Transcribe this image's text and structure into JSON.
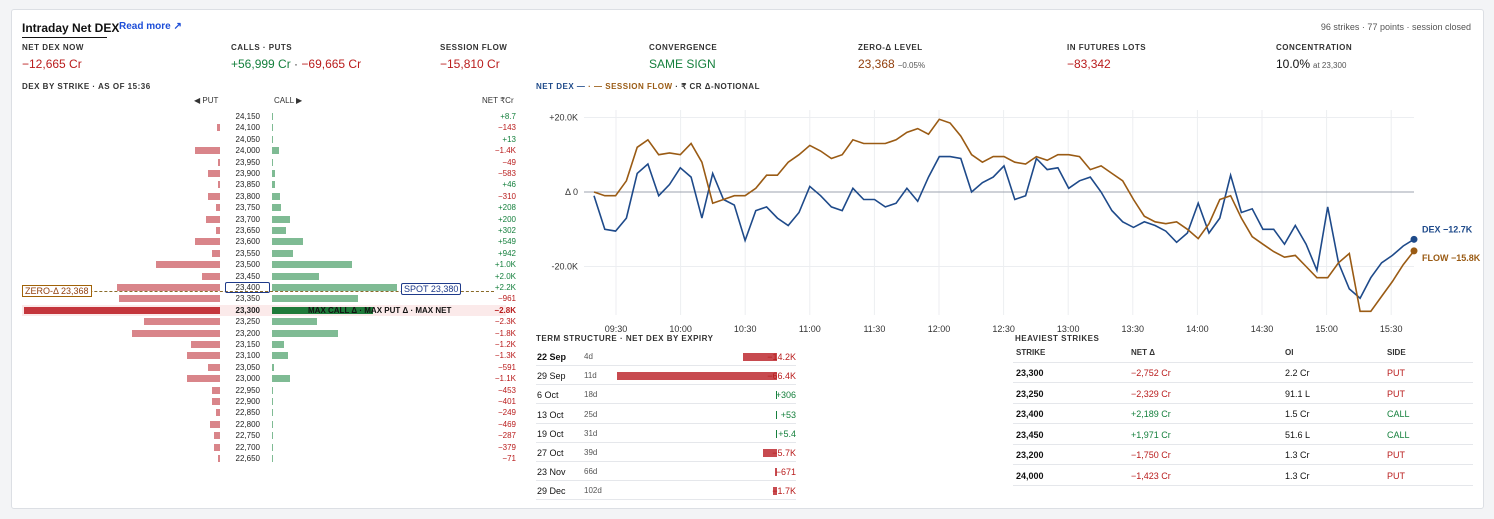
{
  "header": {
    "title": "Intraday Net DEX",
    "read_more": "Read more ↗",
    "meta": "96 strikes · 77 points · session closed"
  },
  "metrics": [
    {
      "label": "NET DEX NOW",
      "value": "−12,665 Cr",
      "color": "red",
      "sub": ""
    },
    {
      "label": "CALLS · PUTS",
      "value": "",
      "color": "",
      "sub": "",
      "calls": "+56,999 Cr",
      "sep": " · ",
      "puts": "−69,665 Cr"
    },
    {
      "label": "SESSION FLOW",
      "value": "−15,810 Cr",
      "color": "red",
      "sub": ""
    },
    {
      "label": "CONVERGENCE",
      "value": "SAME SIGN",
      "color": "green",
      "sub": ""
    },
    {
      "label": "ZERO-Δ LEVEL",
      "value": "23,368",
      "color": "olive",
      "sub": "−0.05%"
    },
    {
      "label": "IN FUTURES LOTS",
      "value": "−83,342",
      "color": "red",
      "sub": ""
    },
    {
      "label": "CONCENTRATION",
      "value": "10.0%",
      "color": "dark",
      "sub": "at 23,300"
    }
  ],
  "strike_section": {
    "title": "DEX BY STRIKE · AS OF 15:36",
    "put_label": "◀ PUT",
    "call_label": "CALL ▶",
    "net_label": "NET ₹Cr",
    "zero_label": "ZERO-Δ 23,368",
    "spot_label": "SPOT 23,380",
    "max_label": "MAX CALL Δ · MAX PUT Δ · MAX NET"
  },
  "strikes": [
    {
      "strike": "24,150",
      "put": 0,
      "call": 0.5,
      "net": "+8.7",
      "sign": "pos"
    },
    {
      "strike": "24,100",
      "put": 1.5,
      "call": 0.5,
      "net": "−143",
      "sign": "neg"
    },
    {
      "strike": "24,050",
      "put": 0,
      "call": 0.5,
      "net": "+13",
      "sign": "pos"
    },
    {
      "strike": "24,000",
      "put": 13,
      "call": 3.5,
      "net": "−1.4K",
      "sign": "neg"
    },
    {
      "strike": "23,950",
      "put": 1,
      "call": 0.5,
      "net": "−49",
      "sign": "neg"
    },
    {
      "strike": "23,900",
      "put": 6,
      "call": 1.5,
      "net": "−583",
      "sign": "neg"
    },
    {
      "strike": "23,850",
      "put": 1,
      "call": 1.5,
      "net": "+46",
      "sign": "pos"
    },
    {
      "strike": "23,800",
      "put": 6,
      "call": 4,
      "net": "−310",
      "sign": "neg"
    },
    {
      "strike": "23,750",
      "put": 2,
      "call": 4.5,
      "net": "+208",
      "sign": "pos"
    },
    {
      "strike": "23,700",
      "put": 7,
      "call": 9,
      "net": "+200",
      "sign": "pos"
    },
    {
      "strike": "23,650",
      "put": 2,
      "call": 7,
      "net": "+302",
      "sign": "pos"
    },
    {
      "strike": "23,600",
      "put": 13,
      "call": 16,
      "net": "+549",
      "sign": "pos"
    },
    {
      "strike": "23,550",
      "put": 4,
      "call": 11,
      "net": "+942",
      "sign": "pos"
    },
    {
      "strike": "23,500",
      "put": 33,
      "call": 41,
      "net": "+1.0K",
      "sign": "pos"
    },
    {
      "strike": "23,450",
      "put": 9,
      "call": 24,
      "net": "+2.0K",
      "sign": "pos"
    },
    {
      "strike": "23,400",
      "put": 53,
      "call": 64,
      "net": "+2.2K",
      "sign": "pos"
    },
    {
      "strike": "23,350",
      "put": 52,
      "call": 44,
      "net": "−961",
      "sign": "neg"
    },
    {
      "strike": "23,300",
      "put": 98,
      "call": 52,
      "net": "−2.8K",
      "sign": "neg"
    },
    {
      "strike": "23,250",
      "put": 39,
      "call": 23,
      "net": "−2.3K",
      "sign": "neg"
    },
    {
      "strike": "23,200",
      "put": 45,
      "call": 34,
      "net": "−1.8K",
      "sign": "neg"
    },
    {
      "strike": "23,150",
      "put": 15,
      "call": 6,
      "net": "−1.2K",
      "sign": "neg"
    },
    {
      "strike": "23,100",
      "put": 17,
      "call": 8,
      "net": "−1.3K",
      "sign": "neg"
    },
    {
      "strike": "23,050",
      "put": 6,
      "call": 1,
      "net": "−591",
      "sign": "neg"
    },
    {
      "strike": "23,000",
      "put": 17,
      "call": 9,
      "net": "−1.1K",
      "sign": "neg"
    },
    {
      "strike": "22,950",
      "put": 4,
      "call": 0.5,
      "net": "−453",
      "sign": "neg"
    },
    {
      "strike": "22,900",
      "put": 4,
      "call": 0.5,
      "net": "−401",
      "sign": "neg"
    },
    {
      "strike": "22,850",
      "put": 2,
      "call": 0.5,
      "net": "−249",
      "sign": "neg"
    },
    {
      "strike": "22,800",
      "put": 5,
      "call": 0.5,
      "net": "−469",
      "sign": "neg"
    },
    {
      "strike": "22,750",
      "put": 3,
      "call": 0.5,
      "net": "−287",
      "sign": "neg"
    },
    {
      "strike": "22,700",
      "put": 3,
      "call": 0.5,
      "net": "−379",
      "sign": "neg"
    },
    {
      "strike": "22,650",
      "put": 1,
      "call": 0.2,
      "net": "−71",
      "sign": "neg"
    }
  ],
  "chart_legend": {
    "a": "NET DEX —",
    "b": " · — SESSION FLOW",
    "c": " · ₹ CR Δ-NOTIONAL"
  },
  "chart_data": {
    "type": "line",
    "x_ticks": [
      "09:30",
      "10:00",
      "10:30",
      "11:00",
      "11:30",
      "12:00",
      "12:30",
      "13:00",
      "13:30",
      "14:00",
      "14:30",
      "15:00",
      "15:30"
    ],
    "y_ticks": [
      "+20.0K",
      "Δ 0",
      "-20.0K"
    ],
    "ylim": [
      -33000,
      22000
    ],
    "series": [
      {
        "name": "DEX",
        "end_label": "DEX −12.7K",
        "color": "#1e4a8a",
        "values": [
          -1,
          -10,
          -10.5,
          -7,
          5,
          7.5,
          -1,
          2,
          6.5,
          4,
          -7,
          5,
          -2,
          -3.5,
          -13,
          -5,
          -4,
          -7,
          -9,
          -5.5,
          1.5,
          -1,
          -4,
          -5,
          1,
          -2,
          -2,
          -4,
          -3,
          1,
          -2.5,
          4,
          9.5,
          9.5,
          9,
          0,
          2.5,
          4,
          7,
          -2,
          -1,
          9,
          6,
          6.5,
          1,
          3,
          4,
          0,
          -5,
          -8,
          -9.5,
          -8,
          -9,
          -10.5,
          -13.5,
          -11,
          -3,
          -11,
          -7,
          4.5,
          -5.5,
          -4.5,
          -10,
          -10,
          -14,
          -9,
          -14,
          -21,
          -4,
          -19,
          -26,
          -28.5,
          -23,
          -19,
          -17,
          -14.5,
          -12.7
        ]
      },
      {
        "name": "FLOW",
        "end_label": "FLOW −15.8K",
        "color": "#9a5b14",
        "values": [
          0,
          -1,
          -1,
          3,
          12,
          14,
          10,
          10.5,
          10,
          13,
          8,
          -3,
          -2,
          -1,
          -1,
          1,
          4.5,
          4.5,
          8,
          10,
          12.5,
          11,
          9,
          10,
          14,
          13,
          13,
          13,
          14,
          16,
          17,
          15.5,
          19.5,
          18.5,
          15,
          10,
          8,
          9.5,
          9.5,
          8,
          7.5,
          9.5,
          8.5,
          10,
          10,
          9.5,
          6,
          7,
          5,
          3,
          -2,
          -6.5,
          -8,
          -8.5,
          -8,
          -10,
          -12.5,
          -8.5,
          -2,
          -1,
          -7,
          -12,
          -14,
          -16,
          -17.5,
          -17,
          -20,
          -23,
          -23,
          -19,
          -16.5,
          -32,
          -32,
          -28,
          -24,
          -19.5,
          -15.8
        ]
      }
    ]
  },
  "term": {
    "title": "TERM STRUCTURE · NET DEX BY EXPIRY",
    "rows": [
      {
        "date": "22 Sep",
        "days": "4d",
        "value": "−14.2K",
        "mag": 14.2,
        "sign": "neg"
      },
      {
        "date": "29 Sep",
        "days": "11d",
        "value": "−66.4K",
        "mag": 66.4,
        "sign": "neg"
      },
      {
        "date": "6 Oct",
        "days": "18d",
        "value": "+306",
        "mag": 0.3,
        "sign": "pos"
      },
      {
        "date": "13 Oct",
        "days": "25d",
        "value": "+53",
        "mag": 0.05,
        "sign": "pos"
      },
      {
        "date": "19 Oct",
        "days": "31d",
        "value": "+5.4",
        "mag": 0.01,
        "sign": "pos"
      },
      {
        "date": "27 Oct",
        "days": "39d",
        "value": "−5.7K",
        "mag": 5.7,
        "sign": "neg"
      },
      {
        "date": "23 Nov",
        "days": "66d",
        "value": "−671",
        "mag": 0.7,
        "sign": "neg"
      },
      {
        "date": "29 Dec",
        "days": "102d",
        "value": "−1.7K",
        "mag": 1.7,
        "sign": "neg"
      }
    ]
  },
  "heaviest": {
    "title": "HEAVIEST STRIKES",
    "headers": [
      "STRIKE",
      "NET Δ",
      "OI",
      "SIDE"
    ],
    "rows": [
      {
        "strike": "23,300",
        "net": "−2,752 Cr",
        "oi": "2.2 Cr",
        "side": "PUT",
        "sign": "neg"
      },
      {
        "strike": "23,250",
        "net": "−2,329 Cr",
        "oi": "91.1 L",
        "side": "PUT",
        "sign": "neg"
      },
      {
        "strike": "23,400",
        "net": "+2,189 Cr",
        "oi": "1.5 Cr",
        "side": "CALL",
        "sign": "pos"
      },
      {
        "strike": "23,450",
        "net": "+1,971 Cr",
        "oi": "51.6 L",
        "side": "CALL",
        "sign": "pos"
      },
      {
        "strike": "23,200",
        "net": "−1,750 Cr",
        "oi": "1.3 Cr",
        "side": "PUT",
        "sign": "neg"
      },
      {
        "strike": "24,000",
        "net": "−1,423 Cr",
        "oi": "1.3 Cr",
        "side": "PUT",
        "sign": "neg"
      }
    ]
  }
}
